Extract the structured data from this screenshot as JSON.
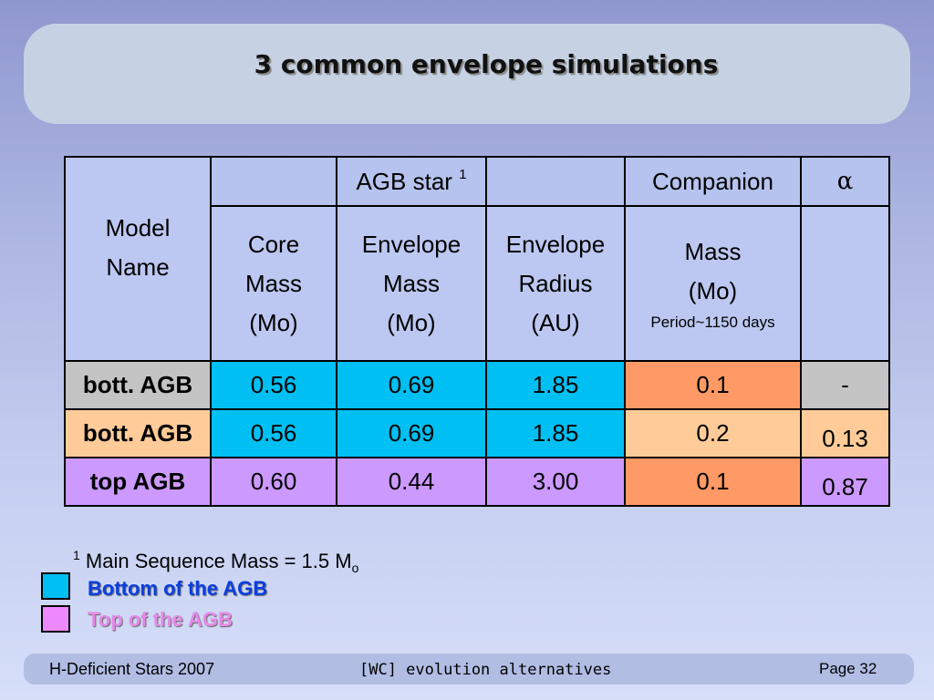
{
  "slide": {
    "title": "3 common envelope simulations",
    "colors": {
      "background_top": "#8f97cf",
      "background_bottom": "#d6def8",
      "title_box": "#c6d2e3",
      "table_header": "#b6c3ee",
      "bottom_agb_cyan": "#00bff2",
      "top_agb_violet": "#cc99ff",
      "companion_orange": "#ff9a66",
      "companion_peach": "#ffcc99",
      "alpha_gray": "#c4c4c4"
    }
  },
  "table": {
    "header": {
      "agb_star": "AGB star",
      "agb_star_sup": "1",
      "companion": "Companion",
      "alpha": "α"
    },
    "subheader": {
      "model_name": [
        "Model",
        "Name"
      ],
      "core_mass": [
        "Core",
        "Mass",
        "(Mo)"
      ],
      "envelope_mass": [
        "Envelope",
        "Mass",
        "(Mo)"
      ],
      "envelope_radius": [
        "Envelope",
        "Radius",
        "(AU)"
      ],
      "companion_mass": [
        "Mass",
        "(Mo)"
      ],
      "companion_period": "Period~1150 days"
    },
    "rows": [
      {
        "name": "bott. AGB",
        "core_mass": "0.56",
        "env_mass": "0.69",
        "env_radius": "1.85",
        "companion_mass": "0.1",
        "alpha": "-"
      },
      {
        "name": "bott. AGB",
        "core_mass": "0.56",
        "env_mass": "0.69",
        "env_radius": "1.85",
        "companion_mass": "0.2",
        "alpha": "0.13"
      },
      {
        "name": "top AGB",
        "core_mass": "0.60",
        "env_mass": "0.44",
        "env_radius": "3.00",
        "companion_mass": "0.1",
        "alpha": "0.87"
      }
    ]
  },
  "footnote": {
    "marker": "1",
    "text": "Main Sequence Mass = 1.5 M",
    "subscript": "o"
  },
  "legend": [
    {
      "label": "Bottom of the AGB",
      "color": "#00bff2",
      "text_color": "#0a3fe0"
    },
    {
      "label": "Top of the AGB",
      "color": "#ee88ff",
      "text_color": "#e58ae8"
    }
  ],
  "footer": {
    "left": "H-Deficient Stars 2007",
    "center": "[WC] evolution alternatives",
    "right": "Page 32"
  }
}
